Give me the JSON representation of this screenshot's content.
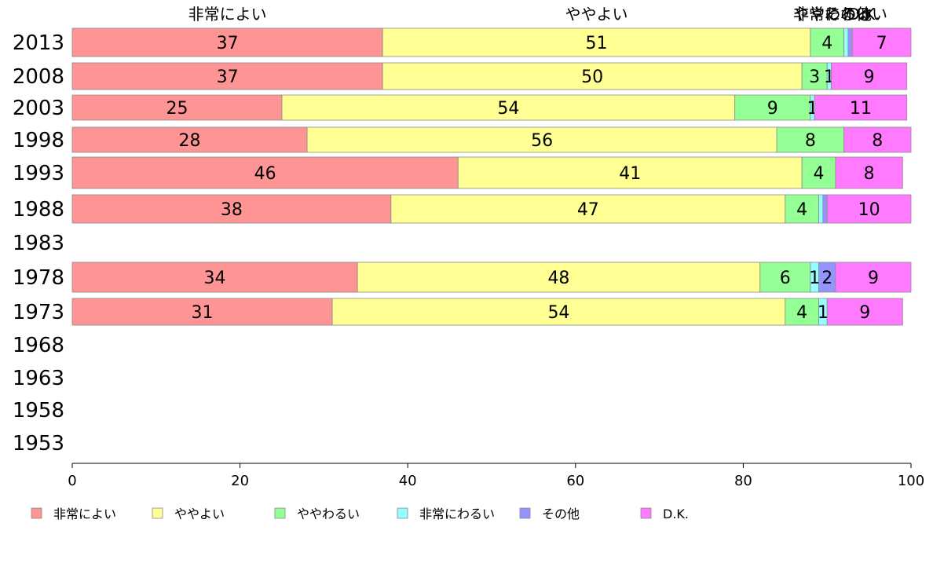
{
  "chart_data": {
    "type": "bar",
    "orientation": "horizontal",
    "stacked": true,
    "title": "",
    "xlabel": "",
    "ylabel": "",
    "xlim": [
      0,
      100
    ],
    "x_ticks": [
      0,
      20,
      40,
      60,
      80,
      100
    ],
    "grid": false,
    "legend_position": "bottom",
    "categories": [
      "2013",
      "2008",
      "2003",
      "1998",
      "1993",
      "1988",
      "1983",
      "1978",
      "1973",
      "1968",
      "1963",
      "1958",
      "1953"
    ],
    "series": [
      {
        "name": "非常によい",
        "color": "#ff9494",
        "values": [
          37,
          37,
          25,
          28,
          46,
          38,
          null,
          34,
          31,
          null,
          null,
          null,
          null
        ]
      },
      {
        "name": "ややよい",
        "color": "#ffff94",
        "values": [
          51,
          50,
          54,
          56,
          41,
          47,
          null,
          48,
          54,
          null,
          null,
          null,
          null
        ]
      },
      {
        "name": "ややわるい",
        "color": "#94ff94",
        "values": [
          4,
          3,
          9,
          8,
          4,
          4,
          null,
          6,
          4,
          null,
          null,
          null,
          null
        ]
      },
      {
        "name": "非常にわるい",
        "color": "#94ffff",
        "values": [
          0.5,
          0.5,
          0.5,
          0,
          0,
          0.5,
          null,
          1,
          1,
          null,
          null,
          null,
          null
        ]
      },
      {
        "name": "その他",
        "color": "#9494ff",
        "values": [
          0.5,
          0,
          0,
          0,
          0,
          0.5,
          null,
          2,
          0,
          null,
          null,
          null,
          null
        ]
      },
      {
        "name": "D.K.",
        "color": "#ff7aff",
        "values": [
          7,
          9,
          11,
          8,
          8,
          10,
          null,
          9,
          9,
          null,
          null,
          null,
          null
        ]
      }
    ],
    "segment_labels": [
      [
        "37",
        "51",
        "4",
        "",
        "",
        "7"
      ],
      [
        "37",
        "50",
        "3",
        "1",
        "",
        "9"
      ],
      [
        "25",
        "54",
        "9",
        "1",
        "",
        "11"
      ],
      [
        "28",
        "56",
        "8",
        "",
        "",
        "8"
      ],
      [
        "46",
        "41",
        "4",
        "",
        "",
        "8"
      ],
      [
        "38",
        "47",
        "4",
        "",
        "",
        "10"
      ],
      [
        "",
        "",
        "",
        "",
        "",
        ""
      ],
      [
        "34",
        "48",
        "6",
        "1",
        "2",
        "9"
      ],
      [
        "31",
        "54",
        "4",
        "1",
        "",
        "9"
      ],
      [
        "",
        "",
        "",
        "",
        "",
        ""
      ],
      [
        "",
        "",
        "",
        "",
        "",
        ""
      ],
      [
        "",
        "",
        "",
        "",
        "",
        ""
      ],
      [
        "",
        "",
        "",
        "",
        "",
        ""
      ]
    ],
    "top_labels": [
      "非常によい",
      "ややよい",
      "ややわるい",
      "非常にわるい",
      "その他",
      "D.K."
    ]
  }
}
